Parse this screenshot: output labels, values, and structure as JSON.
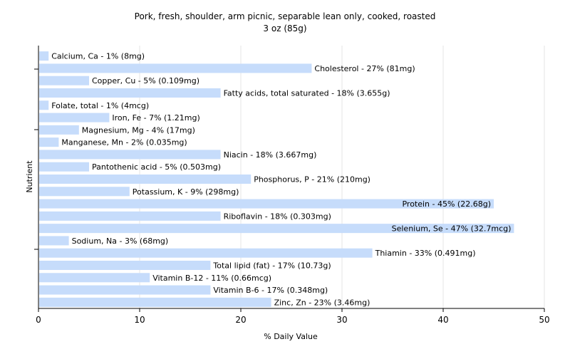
{
  "chart_data": {
    "type": "bar",
    "orientation": "horizontal",
    "title": "Pork, fresh, shoulder, arm picnic, separable lean only, cooked, roasted",
    "subtitle": "3 oz (85g)",
    "xlabel": "% Daily Value",
    "ylabel": "Nutrient",
    "xlim": [
      0,
      50
    ],
    "xticks": [
      0,
      10,
      20,
      30,
      40,
      50
    ],
    "grid": true,
    "legend": "none",
    "bar_color": "#c6dcfb",
    "categories": [
      "Calcium, Ca",
      "Cholesterol",
      "Copper, Cu",
      "Fatty acids, total saturated",
      "Folate, total",
      "Iron, Fe",
      "Magnesium, Mg",
      "Manganese, Mn",
      "Niacin",
      "Pantothenic acid",
      "Phosphorus, P",
      "Potassium, K",
      "Protein",
      "Riboflavin",
      "Selenium, Se",
      "Sodium, Na",
      "Thiamin",
      "Total lipid (fat)",
      "Vitamin B-12",
      "Vitamin B-6",
      "Zinc, Zn"
    ],
    "values": [
      1,
      27,
      5,
      18,
      1,
      7,
      4,
      2,
      18,
      5,
      21,
      9,
      45,
      18,
      47,
      3,
      33,
      17,
      11,
      17,
      23
    ],
    "data_labels": [
      "Calcium, Ca - 1% (8mg)",
      "Cholesterol - 27% (81mg)",
      "Copper, Cu - 5% (0.109mg)",
      "Fatty acids, total saturated - 18% (3.655g)",
      "Folate, total - 1% (4mcg)",
      "Iron, Fe - 7% (1.21mg)",
      "Magnesium, Mg - 4% (17mg)",
      "Manganese, Mn - 2% (0.035mg)",
      "Niacin - 18% (3.667mg)",
      "Pantothenic acid - 5% (0.503mg)",
      "Phosphorus, P - 21% (210mg)",
      "Potassium, K - 9% (298mg)",
      "Protein - 45% (22.68g)",
      "Riboflavin - 18% (0.303mg)",
      "Selenium, Se - 47% (32.7mcg)",
      "Sodium, Na - 3% (68mg)",
      "Thiamin - 33% (0.491mg)",
      "Total lipid (fat) - 17% (10.73g)",
      "Vitamin B-12 - 11% (0.66mcg)",
      "Vitamin B-6 - 17% (0.348mg)",
      "Zinc, Zn - 23% (3.46mg)"
    ]
  }
}
